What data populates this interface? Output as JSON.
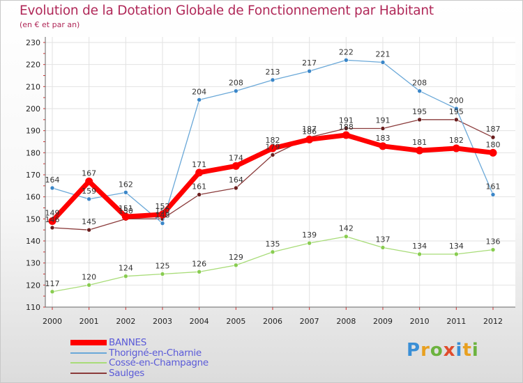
{
  "title": "Evolution de la Dotation Globale de Fonctionnement par Habitant",
  "subtitle": "(en € et par an)",
  "logo": {
    "text": "Proxiti",
    "letters": [
      {
        "ch": "P",
        "color": "#3a8fd6"
      },
      {
        "ch": "r",
        "color": "#e8a020"
      },
      {
        "ch": "o",
        "color": "#6cb33f"
      },
      {
        "ch": "x",
        "color": "#e04c2c"
      },
      {
        "ch": "i",
        "color": "#3a8fd6"
      },
      {
        "ch": "t",
        "color": "#e8a020"
      },
      {
        "ch": "i",
        "color": "#6cb33f"
      }
    ]
  },
  "chart_data": {
    "type": "line",
    "title": "Evolution de la Dotation Globale de Fonctionnement par Habitant",
    "subtitle": "(en € et par an)",
    "x": [
      "2000",
      "2001",
      "2002",
      "2003",
      "2004",
      "2005",
      "2006",
      "2007",
      "2008",
      "2009",
      "2010",
      "2011",
      "2012"
    ],
    "ylim": [
      110,
      230
    ],
    "yticks": [
      110,
      120,
      130,
      140,
      150,
      160,
      170,
      180,
      190,
      200,
      210,
      220,
      230
    ],
    "grid": true,
    "legend_position": "bottom-left",
    "series": [
      {
        "name": "BANNES",
        "color": "#ff0000",
        "point_color": "#ff0000",
        "width": 7,
        "radius": 5.5,
        "values": [
          149,
          167,
          151,
          152,
          171,
          174,
          182,
          186,
          188,
          183,
          181,
          182,
          180
        ]
      },
      {
        "name": "Thorigné-en-Charnie",
        "color": "#6aa8d8",
        "point_color": "#3a86c8",
        "width": 1.3,
        "radius": 3,
        "values": [
          164,
          159,
          162,
          148,
          204,
          208,
          213,
          217,
          222,
          221,
          208,
          200,
          161
        ]
      },
      {
        "name": "Cossé-en-Champagne",
        "color": "#a8dc78",
        "point_color": "#88cc50",
        "width": 1.3,
        "radius": 3,
        "values": [
          117,
          120,
          124,
          125,
          126,
          129,
          135,
          139,
          142,
          137,
          134,
          134,
          136
        ]
      },
      {
        "name": "Saulges",
        "color": "#8a3a3a",
        "point_color": "#6a1e1e",
        "width": 1.3,
        "radius": 3,
        "values": [
          146,
          145,
          150,
          150,
          161,
          164,
          179,
          187,
          191,
          191,
          195,
          195,
          187
        ]
      }
    ]
  }
}
